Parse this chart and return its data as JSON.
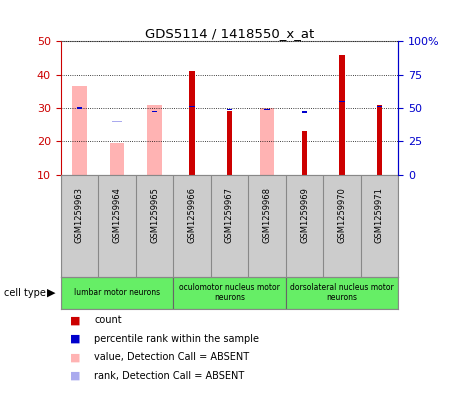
{
  "title": "GDS5114 / 1418550_x_at",
  "samples": [
    "GSM1259963",
    "GSM1259964",
    "GSM1259965",
    "GSM1259966",
    "GSM1259967",
    "GSM1259968",
    "GSM1259969",
    "GSM1259970",
    "GSM1259971"
  ],
  "count_values": [
    null,
    null,
    null,
    41,
    29,
    null,
    23,
    46,
    31
  ],
  "percentile_values": [
    30,
    null,
    29,
    30.5,
    29.5,
    29.5,
    28.8,
    32,
    30.5
  ],
  "value_absent": [
    36.5,
    19.5,
    31,
    null,
    null,
    30,
    null,
    null,
    null
  ],
  "rank_absent": [
    null,
    26,
    null,
    null,
    null,
    null,
    null,
    null,
    null
  ],
  "ylim_left": [
    10,
    50
  ],
  "ylim_right": [
    0,
    100
  ],
  "yticks_left": [
    10,
    20,
    30,
    40,
    50
  ],
  "yticks_right": [
    0,
    25,
    50,
    75,
    100
  ],
  "ytick_labels_right": [
    "0",
    "25",
    "50",
    "75",
    "100%"
  ],
  "cell_groups": [
    {
      "label": "lumbar motor neurons",
      "start": 0,
      "end": 3
    },
    {
      "label": "oculomotor nucleus motor\nneurons",
      "start": 3,
      "end": 6
    },
    {
      "label": "dorsolateral nucleus motor\nneurons",
      "start": 6,
      "end": 9
    }
  ],
  "count_color": "#cc0000",
  "percentile_color": "#0000cc",
  "value_absent_color": "#ffb3b3",
  "rank_absent_color": "#aaaaee",
  "cell_group_color": "#66ee66",
  "sample_box_color": "#cccccc",
  "background_color": "#ffffff",
  "plot_bg_color": "#ffffff",
  "grid_color": "#000000",
  "axis_left_color": "#cc0000",
  "axis_right_color": "#0000cc",
  "legend_items": [
    {
      "color": "#cc0000",
      "label": "count"
    },
    {
      "color": "#0000cc",
      "label": "percentile rank within the sample"
    },
    {
      "color": "#ffb3b3",
      "label": "value, Detection Call = ABSENT"
    },
    {
      "color": "#aaaaee",
      "label": "rank, Detection Call = ABSENT"
    }
  ]
}
